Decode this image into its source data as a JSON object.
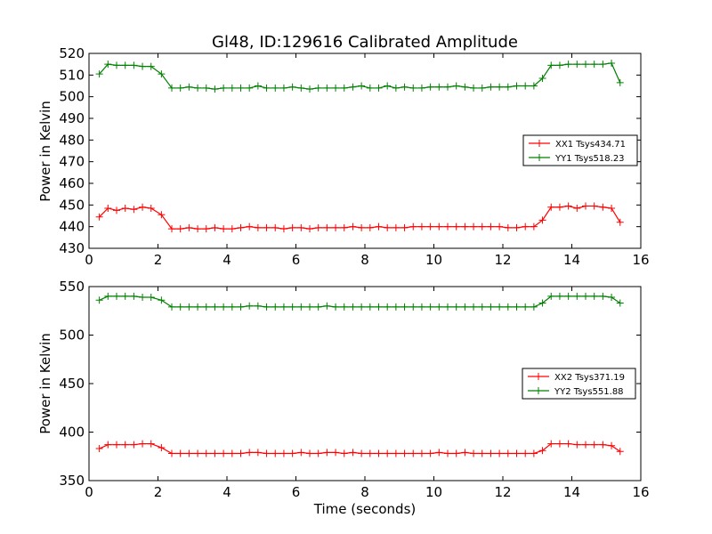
{
  "chart_data": [
    {
      "type": "line",
      "title": "Gl48, ID:129616 Calibrated Amplitude",
      "xlabel": "",
      "ylabel": "Power in Kelvin",
      "xlim": [
        0,
        16
      ],
      "ylim": [
        430,
        520
      ],
      "xticks": [
        0,
        2,
        4,
        6,
        8,
        10,
        12,
        14,
        16
      ],
      "yticks": [
        430,
        440,
        450,
        460,
        470,
        480,
        490,
        500,
        510,
        520
      ],
      "grid": false,
      "legend_position": "center-right",
      "x": [
        0.3,
        0.55,
        0.8,
        1.05,
        1.3,
        1.55,
        1.8,
        2.1,
        2.4,
        2.65,
        2.9,
        3.15,
        3.4,
        3.65,
        3.9,
        4.15,
        4.4,
        4.65,
        4.9,
        5.15,
        5.4,
        5.65,
        5.9,
        6.15,
        6.4,
        6.65,
        6.9,
        7.15,
        7.4,
        7.65,
        7.9,
        8.15,
        8.4,
        8.65,
        8.9,
        9.15,
        9.4,
        9.65,
        9.9,
        10.15,
        10.4,
        10.65,
        10.9,
        11.15,
        11.4,
        11.65,
        11.9,
        12.15,
        12.4,
        12.65,
        12.9,
        13.15,
        13.4,
        13.65,
        13.9,
        14.15,
        14.4,
        14.65,
        14.9,
        15.15,
        15.4
      ],
      "series": [
        {
          "name": "XX1 Tsys434.71",
          "color": "#ff0000",
          "values": [
            444.5,
            448.5,
            447.5,
            448.5,
            448,
            449,
            448.5,
            445.5,
            439,
            439,
            439.5,
            439,
            439,
            439.5,
            439,
            439,
            439.5,
            440,
            439.5,
            439.5,
            439.5,
            439,
            439.5,
            439.5,
            439,
            439.5,
            439.5,
            439.5,
            439.5,
            440,
            439.5,
            439.5,
            440,
            439.5,
            439.5,
            439.5,
            440,
            440,
            440,
            440,
            440,
            440,
            440,
            440,
            440,
            440,
            440,
            439.5,
            439.5,
            440,
            440,
            443,
            449,
            449,
            449.5,
            448.5,
            449.5,
            449.5,
            449,
            448.5,
            442
          ]
        },
        {
          "name": "YY1 Tsys518.23",
          "color": "#008000",
          "values": [
            510.5,
            515,
            514.5,
            514.5,
            514.5,
            514,
            514,
            510.5,
            504,
            504,
            504.5,
            504,
            504,
            503.5,
            504,
            504,
            504,
            504,
            505,
            504,
            504,
            504,
            504.5,
            504,
            503.5,
            504,
            504,
            504,
            504,
            504.5,
            505,
            504,
            504,
            505,
            504,
            504.5,
            504,
            504,
            504.5,
            504.5,
            504.5,
            505,
            504.5,
            504,
            504,
            504.5,
            504.5,
            504.5,
            505,
            505,
            505,
            508.5,
            514.5,
            514.5,
            515,
            515,
            515,
            515,
            515,
            515.5,
            506.5
          ]
        }
      ]
    },
    {
      "type": "line",
      "title": "",
      "xlabel": "Time (seconds)",
      "ylabel": "Power in Kelvin",
      "xlim": [
        0,
        16
      ],
      "ylim": [
        350,
        550
      ],
      "xticks": [
        0,
        2,
        4,
        6,
        8,
        10,
        12,
        14,
        16
      ],
      "yticks": [
        350,
        400,
        450,
        500,
        550
      ],
      "grid": false,
      "legend_position": "center-right",
      "x": [
        0.3,
        0.55,
        0.8,
        1.05,
        1.3,
        1.55,
        1.8,
        2.1,
        2.4,
        2.65,
        2.9,
        3.15,
        3.4,
        3.65,
        3.9,
        4.15,
        4.4,
        4.65,
        4.9,
        5.15,
        5.4,
        5.65,
        5.9,
        6.15,
        6.4,
        6.65,
        6.9,
        7.15,
        7.4,
        7.65,
        7.9,
        8.15,
        8.4,
        8.65,
        8.9,
        9.15,
        9.4,
        9.65,
        9.9,
        10.15,
        10.4,
        10.65,
        10.9,
        11.15,
        11.4,
        11.65,
        11.9,
        12.15,
        12.4,
        12.65,
        12.9,
        13.15,
        13.4,
        13.65,
        13.9,
        14.15,
        14.4,
        14.65,
        14.9,
        15.15,
        15.4
      ],
      "series": [
        {
          "name": "XX2 Tsys371.19",
          "color": "#ff0000",
          "values": [
            383,
            387,
            387,
            387,
            387,
            388,
            388,
            384,
            378,
            378,
            378,
            378,
            378,
            378,
            378,
            378,
            378,
            379,
            379,
            378,
            378,
            378,
            378,
            379,
            378,
            378,
            379,
            379,
            378,
            379,
            378,
            378,
            378,
            378,
            378,
            378,
            378,
            378,
            378,
            379,
            378,
            378,
            379,
            378,
            378,
            378,
            378,
            378,
            378,
            378,
            378,
            381,
            388,
            388,
            388,
            387,
            387,
            387,
            387,
            386,
            380
          ]
        },
        {
          "name": "YY2 Tsys551.88",
          "color": "#008000",
          "values": [
            536,
            540,
            540,
            540,
            540,
            539,
            539,
            536,
            529,
            529,
            529,
            529,
            529,
            529,
            529,
            529,
            529,
            530,
            530,
            529,
            529,
            529,
            529,
            529,
            529,
            529,
            530,
            529,
            529,
            529,
            529,
            529,
            529,
            529,
            529,
            529,
            529,
            529,
            529,
            529,
            529,
            529,
            529,
            529,
            529,
            529,
            529,
            529,
            529,
            529,
            529,
            533,
            540,
            540,
            540,
            540,
            540,
            540,
            540,
            539,
            533
          ]
        }
      ]
    }
  ]
}
